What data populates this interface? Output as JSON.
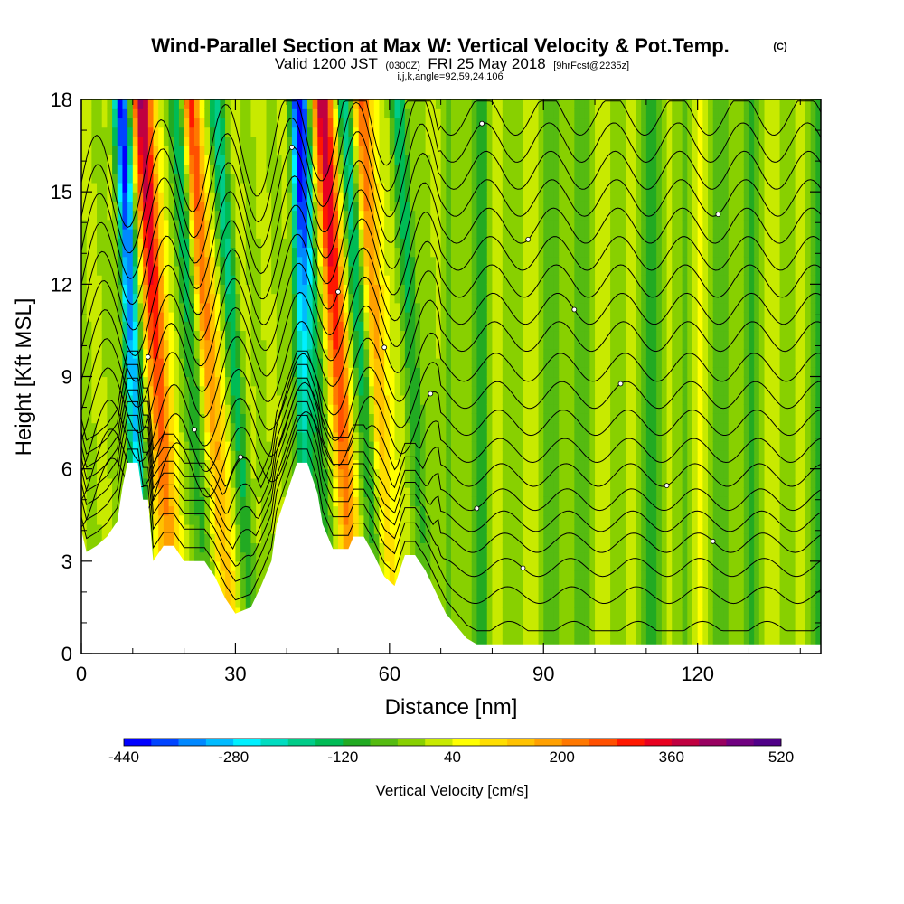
{
  "chart_data": {
    "type": "heatmap",
    "title": "Wind-Parallel Section at Max W: Vertical Velocity & Pot.Temp.",
    "title_mark": "(C)",
    "valid_prefix": "Valid 1200 JST",
    "valid_utc": "(0300Z)",
    "valid_date": "FRI 25 May 2018",
    "valid_fcst": "[9hrFcst@2235z]",
    "subtitle": "i,j,k,angle=92,59,24,106",
    "xlabel": "Distance [nm]",
    "ylabel": "Height [Kft MSL]",
    "xlim": [
      0,
      144
    ],
    "ylim": [
      0,
      18
    ],
    "xticks": [
      "0",
      "30",
      "60",
      "90",
      "120"
    ],
    "yticks": [
      "0",
      "3",
      "6",
      "9",
      "12",
      "15",
      "18"
    ],
    "xtick_values": [
      0,
      30,
      60,
      90,
      120
    ],
    "ytick_values": [
      0,
      3,
      6,
      9,
      12,
      15,
      18
    ],
    "colorbar": {
      "label": "Vertical Velocity [cm/s]",
      "ticks": [
        "-440",
        "-280",
        "-120",
        "40",
        "200",
        "360",
        "520"
      ],
      "tick_values": [
        -440,
        -280,
        -120,
        40,
        200,
        360,
        520
      ],
      "min": -440,
      "max": 520,
      "colors": [
        "#0000ff",
        "#0044ff",
        "#0088ff",
        "#00bbff",
        "#00f0ff",
        "#00dcc0",
        "#00cc88",
        "#00bb55",
        "#22aa22",
        "#55bb11",
        "#88d000",
        "#c8ea00",
        "#ffff00",
        "#ffde00",
        "#ffc200",
        "#ffa000",
        "#ff7800",
        "#ff5000",
        "#ff1800",
        "#e80020",
        "#c00040",
        "#980060",
        "#700080",
        "#500088"
      ]
    },
    "terrain": [
      [
        0,
        4
      ],
      [
        1,
        3.3
      ],
      [
        3,
        3.5
      ],
      [
        5,
        3.8
      ],
      [
        7,
        4.3
      ],
      [
        8,
        5.4
      ],
      [
        9,
        6.2
      ],
      [
        11,
        6.2
      ],
      [
        12,
        5.0
      ],
      [
        13,
        5.0
      ],
      [
        14,
        3.0
      ],
      [
        16,
        3.5
      ],
      [
        18,
        3.5
      ],
      [
        20,
        3.0
      ],
      [
        24,
        3.0
      ],
      [
        26,
        2.5
      ],
      [
        28,
        1.8
      ],
      [
        30,
        1.3
      ],
      [
        33,
        1.5
      ],
      [
        35,
        2.2
      ],
      [
        37,
        3.0
      ],
      [
        38,
        4.2
      ],
      [
        40,
        5.2
      ],
      [
        42,
        6.2
      ],
      [
        44,
        6.2
      ],
      [
        46,
        5.2
      ],
      [
        47,
        4.2
      ],
      [
        49,
        3.4
      ],
      [
        52,
        3.4
      ],
      [
        53,
        3.8
      ],
      [
        55,
        3.8
      ],
      [
        57,
        3.2
      ],
      [
        59,
        2.5
      ],
      [
        61,
        2.2
      ],
      [
        62,
        2.7
      ],
      [
        63,
        3.2
      ],
      [
        65,
        3.2
      ],
      [
        67,
        2.7
      ],
      [
        69,
        2.0
      ],
      [
        71,
        1.3
      ],
      [
        73,
        0.9
      ],
      [
        75,
        0.5
      ],
      [
        77,
        0.3
      ],
      [
        144,
        0.3
      ]
    ],
    "updrafts": [
      {
        "x0": 15,
        "slope": 1.0,
        "w": 440
      },
      {
        "x0": 25,
        "slope": 1.2,
        "w": 320
      },
      {
        "x0": 50,
        "slope": 1.0,
        "w": 430
      },
      {
        "x0": 58,
        "slope": 1.0,
        "w": 250
      }
    ],
    "downdrafts": [
      {
        "x0": 10,
        "slope": 0.7,
        "w": -420
      },
      {
        "x0": 22,
        "slope": 1.0,
        "w": -200
      },
      {
        "x0": 30,
        "slope": 1.3,
        "w": -180
      },
      {
        "x0": 43,
        "slope": 0.2,
        "w": -340
      },
      {
        "x0": 46,
        "slope": 1.0,
        "w": -200
      },
      {
        "x0": 55,
        "slope": 1.2,
        "w": -180
      },
      {
        "x0": 65,
        "slope": 1.0,
        "w": -160
      }
    ],
    "isentropes": [
      {
        "level": 1,
        "base": 0.8
      },
      {
        "level": 2,
        "base": 1.9
      },
      {
        "level": 3,
        "base": 2.8
      },
      {
        "level": 4,
        "base": 3.6
      },
      {
        "level": 5,
        "base": 4.3
      },
      {
        "level": 6,
        "base": 5.0
      },
      {
        "level": 7,
        "base": 5.8
      },
      {
        "level": 8,
        "base": 6.6
      },
      {
        "level": 9,
        "base": 7.5
      },
      {
        "level": 10,
        "base": 8.4
      },
      {
        "level": 11,
        "base": 9.3
      },
      {
        "level": 12,
        "base": 10.3
      },
      {
        "level": 13,
        "base": 11.2
      },
      {
        "level": 14,
        "base": 12.1
      },
      {
        "level": 15,
        "base": 13.0
      },
      {
        "level": 16,
        "base": 13.9
      },
      {
        "level": 17,
        "base": 14.8
      },
      {
        "level": 18,
        "base": 15.7
      },
      {
        "level": 19,
        "base": 16.6
      },
      {
        "level": 20,
        "base": 17.5
      }
    ]
  }
}
